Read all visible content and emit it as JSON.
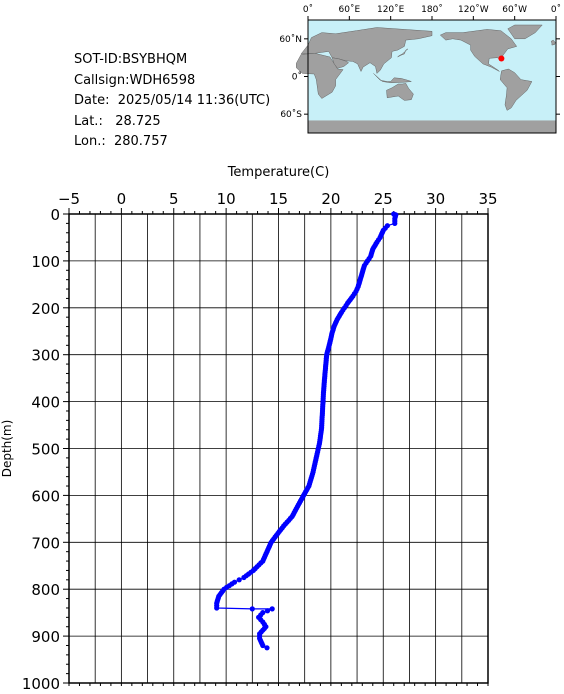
{
  "info": {
    "sot_id": "SOT-ID:BSYBHQM",
    "callsign": "Callsign:WDH6598",
    "date": "Date:  2025/05/14 11:36(UTC)",
    "lat": "Lat.:   28.725",
    "lon": "Lon.:  280.757"
  },
  "map": {
    "lon_labels": [
      "0˚",
      "60˚E",
      "120˚E",
      "180˚",
      "120˚W",
      "60˚W",
      "0˚"
    ],
    "lat_labels": [
      "60˚N",
      "0˚",
      "60˚S"
    ],
    "ocean_color": "#c8f0f8",
    "land_color": "#a0a0a0",
    "marker_color": "#ff0000",
    "marker": {
      "lat": 28.725,
      "lon": 280.757
    }
  },
  "chart_data": {
    "type": "line",
    "title": "",
    "xlabel": "Temperature(C)",
    "ylabel": "Depth(m)",
    "xlim": [
      -5,
      35
    ],
    "ylim": [
      0,
      1000
    ],
    "y_inverted": true,
    "x_axis_position": "top",
    "x_ticks": [
      -5,
      0,
      5,
      10,
      15,
      20,
      25,
      30,
      35
    ],
    "y_ticks": [
      0,
      100,
      200,
      300,
      400,
      500,
      600,
      700,
      800,
      900,
      1000
    ],
    "grid": true,
    "series_color": "#0000ff",
    "series": [
      {
        "points": [
          [
            26.0,
            0
          ],
          [
            26.2,
            2
          ],
          [
            26.1,
            10
          ],
          [
            26.1,
            20
          ],
          [
            25.4,
            25
          ],
          [
            25.0,
            35
          ],
          [
            24.7,
            50
          ],
          [
            24.4,
            60
          ],
          [
            24.0,
            75
          ],
          [
            23.8,
            90
          ],
          [
            23.5,
            100
          ],
          [
            23.2,
            110
          ],
          [
            23.0,
            125
          ],
          [
            22.8,
            140
          ],
          [
            22.6,
            155
          ],
          [
            22.4,
            165
          ],
          [
            22.1,
            175
          ],
          [
            21.6,
            190
          ],
          [
            21.3,
            200
          ],
          [
            21.0,
            210
          ],
          [
            20.6,
            225
          ],
          [
            20.3,
            240
          ],
          [
            20.1,
            255
          ],
          [
            19.9,
            275
          ],
          [
            19.6,
            300
          ],
          [
            19.5,
            325
          ],
          [
            19.4,
            350
          ],
          [
            19.3,
            380
          ],
          [
            19.2,
            420
          ],
          [
            19.1,
            460
          ],
          [
            18.9,
            490
          ],
          [
            18.6,
            520
          ],
          [
            18.3,
            550
          ],
          [
            17.9,
            580
          ],
          [
            17.4,
            600
          ],
          [
            16.9,
            620
          ],
          [
            16.3,
            645
          ],
          [
            15.5,
            665
          ],
          [
            14.8,
            685
          ],
          [
            14.3,
            700
          ],
          [
            13.9,
            720
          ],
          [
            13.5,
            740
          ],
          [
            12.6,
            760
          ],
          [
            11.7,
            775
          ],
          [
            10.8,
            785
          ],
          [
            9.8,
            800
          ],
          [
            9.3,
            815
          ],
          [
            9.1,
            830
          ],
          [
            9.1,
            840
          ],
          [
            12.5,
            842
          ],
          [
            14.4,
            842
          ],
          [
            13.5,
            850
          ],
          [
            13.1,
            860
          ],
          [
            13.5,
            870
          ],
          [
            13.8,
            880
          ],
          [
            13.2,
            895
          ],
          [
            13.2,
            905
          ],
          [
            13.5,
            920
          ],
          [
            13.9,
            925
          ]
        ]
      }
    ]
  }
}
